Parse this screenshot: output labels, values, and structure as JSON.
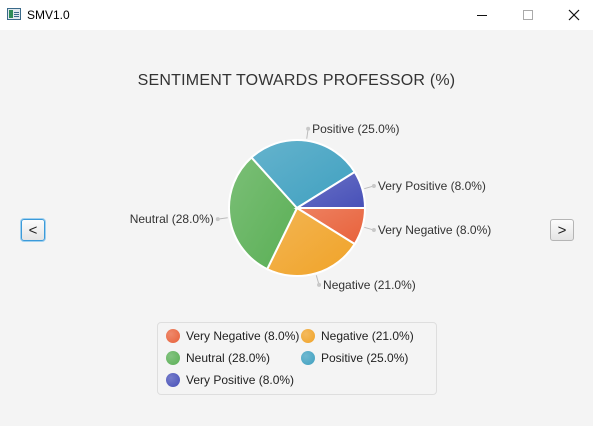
{
  "window": {
    "title": "SMV1.0",
    "minimize_icon": "minimize-icon",
    "maximize_icon": "maximize-icon",
    "close_icon": "close-icon"
  },
  "navigation": {
    "prev_label": "<",
    "next_label": ">"
  },
  "chart_data": {
    "type": "pie",
    "title": "SENTIMENT TOWARDS PROFESSOR (%)",
    "slices": [
      {
        "name": "Very Negative",
        "value": 8.0,
        "label": "Very Negative (8.0%)",
        "color": "#e8613a"
      },
      {
        "name": "Negative",
        "value": 21.0,
        "label": "Negative (21.0%)",
        "color": "#f0a328"
      },
      {
        "name": "Neutral",
        "value": 28.0,
        "label": "Neutral (28.0%)",
        "color": "#5aaf55"
      },
      {
        "name": "Positive",
        "value": 25.0,
        "label": "Positive (25.0%)",
        "color": "#3fa0c0"
      },
      {
        "name": "Very Positive",
        "value": 8.0,
        "label": "Very Positive (8.0%)",
        "color": "#4750b8"
      }
    ],
    "legend": {
      "placement": "bottom"
    }
  }
}
